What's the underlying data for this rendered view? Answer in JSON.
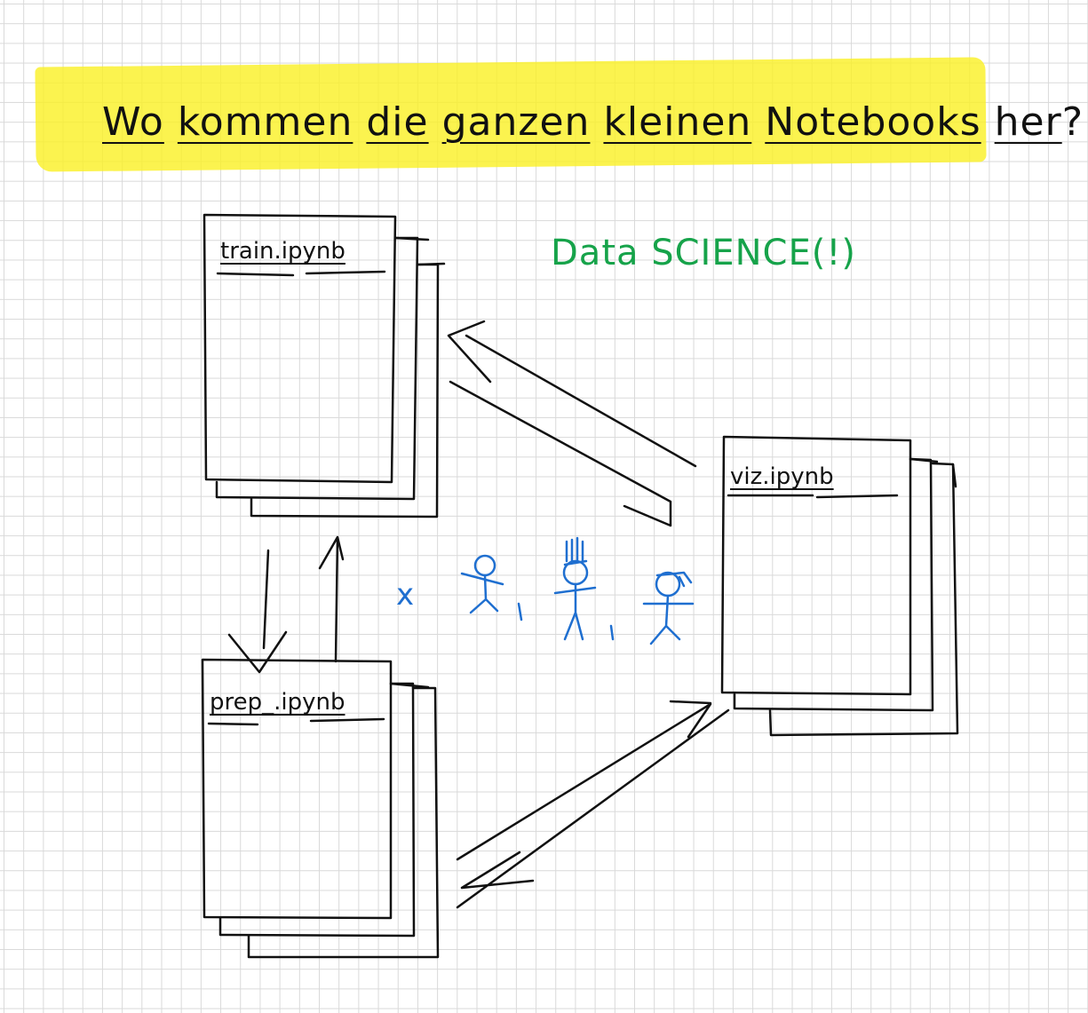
{
  "title": {
    "words": [
      "Wo",
      "kommen",
      "die",
      "ganzen",
      "kleinen",
      "Notebooks",
      "her"
    ],
    "mark": "?"
  },
  "subtitle": "Data SCIENCE(!)",
  "notebooks": {
    "train": "train.ipynb",
    "viz": "viz.ipynb",
    "prep": "prep_.ipynb"
  },
  "people_prefix": "x",
  "colors": {
    "highlight": "#faf028",
    "ink": "#111111",
    "green": "#16a34a",
    "blue": "#1f6fd0",
    "grid": "#d9d9d9"
  }
}
